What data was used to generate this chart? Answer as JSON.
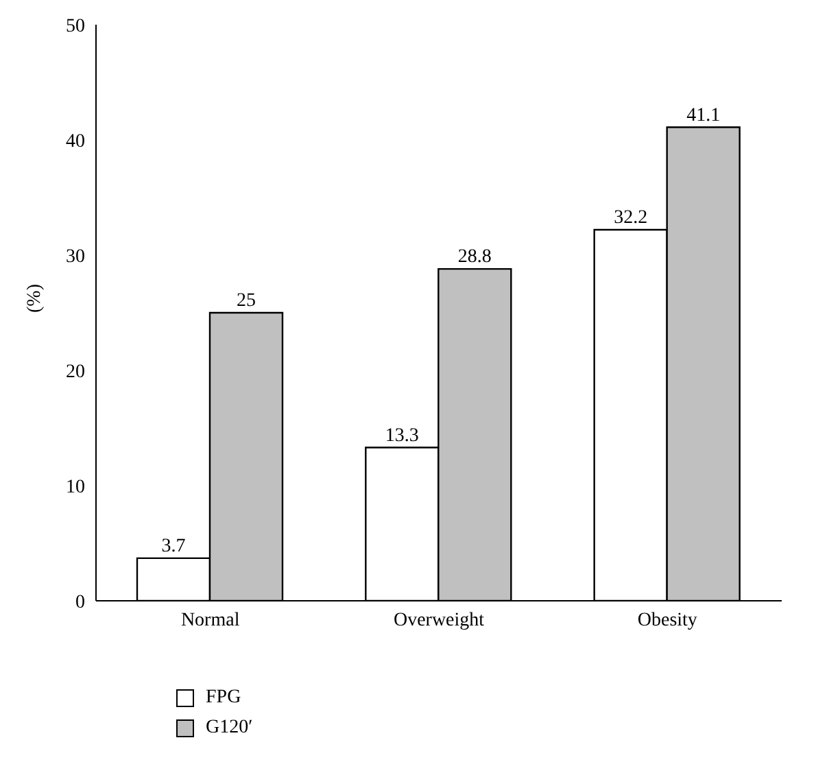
{
  "chart_data": {
    "type": "bar",
    "ylabel": "(%)",
    "categories": [
      "Normal",
      "Overweight",
      "Obesity"
    ],
    "series": [
      {
        "name": "FPG",
        "color": "#ffffff",
        "values": [
          3.7,
          13.3,
          32.2
        ]
      },
      {
        "name": "G120′",
        "color": "#c0c0c0",
        "values": [
          25,
          28.8,
          41.1
        ]
      }
    ],
    "ylim": [
      0,
      50
    ],
    "yticks": [
      0,
      10,
      20,
      30,
      40,
      50
    ],
    "data_labels": true,
    "grid": false,
    "legend": "bottom left"
  }
}
